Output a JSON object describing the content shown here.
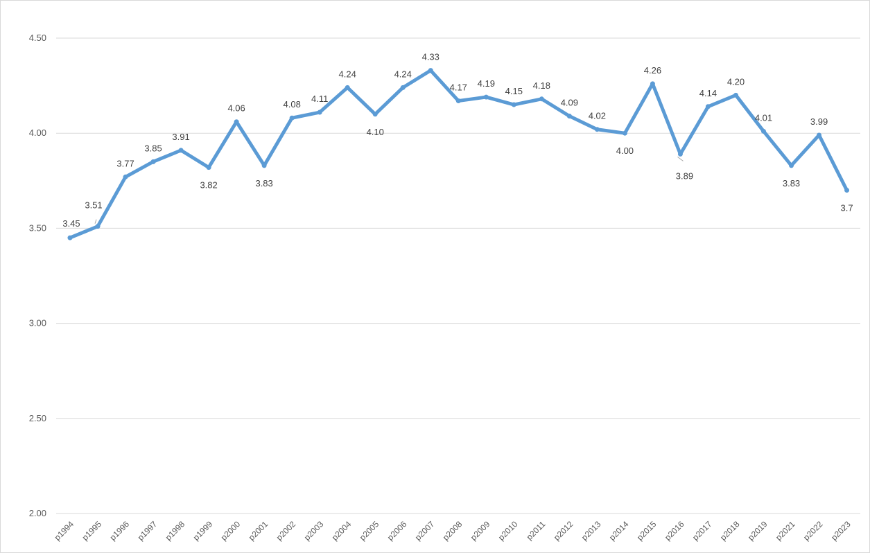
{
  "chart_data": {
    "type": "line",
    "title": "",
    "xlabel": "",
    "ylabel": "",
    "ylim": [
      2.0,
      4.5
    ],
    "y_ticks": [
      "2.00",
      "2.50",
      "3.00",
      "3.50",
      "4.00",
      "4.50"
    ],
    "grid": true,
    "legend": "none",
    "line_color": "#5B9BD5",
    "categories": [
      "p1994",
      "p1995",
      "p1996",
      "p1997",
      "p1998",
      "p1999",
      "p2000",
      "p2001",
      "p2002",
      "p2003",
      "p2004",
      "p2005",
      "p2006",
      "p2007",
      "p2008",
      "p2009",
      "p2010",
      "p2011",
      "p2012",
      "p2013",
      "p2014",
      "p2015",
      "p2016",
      "p2017",
      "p2018",
      "p2019",
      "p2021",
      "p2022",
      "p2023"
    ],
    "series": [
      {
        "values": [
          3.45,
          3.51,
          3.77,
          3.85,
          3.91,
          3.82,
          4.06,
          3.83,
          4.08,
          4.11,
          4.24,
          4.1,
          4.24,
          4.33,
          4.17,
          4.19,
          4.15,
          4.18,
          4.09,
          4.02,
          4.0,
          4.26,
          3.89,
          4.14,
          4.2,
          4.01,
          3.83,
          3.99,
          3.7
        ],
        "labels": [
          "3.45",
          "3.51",
          "3.77",
          "3.85",
          "3.91",
          "3.82",
          "4.06",
          "3.83",
          "4.08",
          "4.11",
          "4.24",
          "4.10",
          "4.24",
          "4.33",
          "4.17",
          "4.19",
          "4.15",
          "4.18",
          "4.09",
          "4.02",
          "4.00",
          "4.26",
          "3.89",
          "4.14",
          "4.20",
          "4.01",
          "3.83",
          "3.99",
          "3.7"
        ]
      }
    ]
  }
}
